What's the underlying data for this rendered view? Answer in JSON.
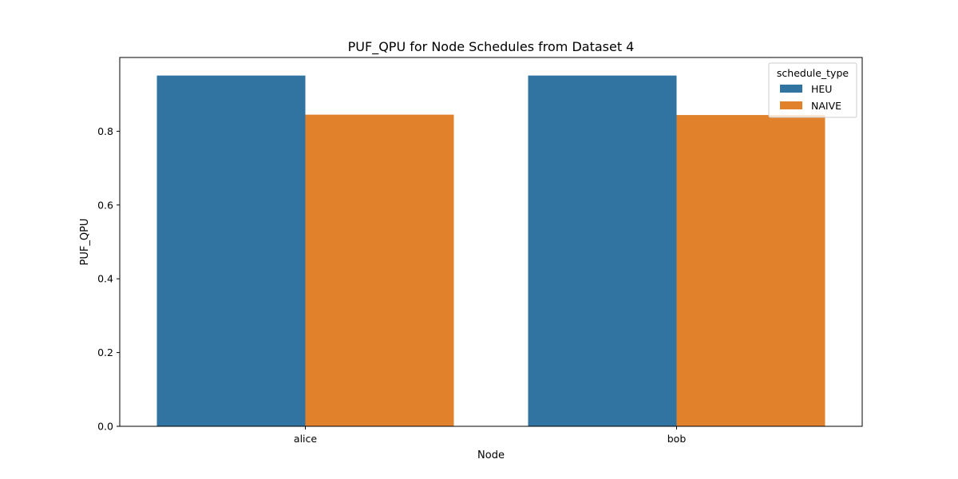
{
  "chart_data": {
    "type": "bar",
    "title": "PUF_QPU for Node Schedules from Dataset 4",
    "xlabel": "Node",
    "ylabel": "PUF_QPU",
    "categories": [
      "alice",
      "bob"
    ],
    "series": [
      {
        "name": "HEU",
        "color": "#3274a1",
        "values": [
          0.951,
          0.951
        ]
      },
      {
        "name": "NAIVE",
        "color": "#e1812c",
        "values": [
          0.845,
          0.844
        ]
      }
    ],
    "ylim": [
      0,
      1.0
    ],
    "yticks": [
      "0.0",
      "0.2",
      "0.4",
      "0.6",
      "0.8"
    ],
    "grid": false,
    "legend": {
      "title": "schedule_type",
      "position": "top-right"
    }
  }
}
